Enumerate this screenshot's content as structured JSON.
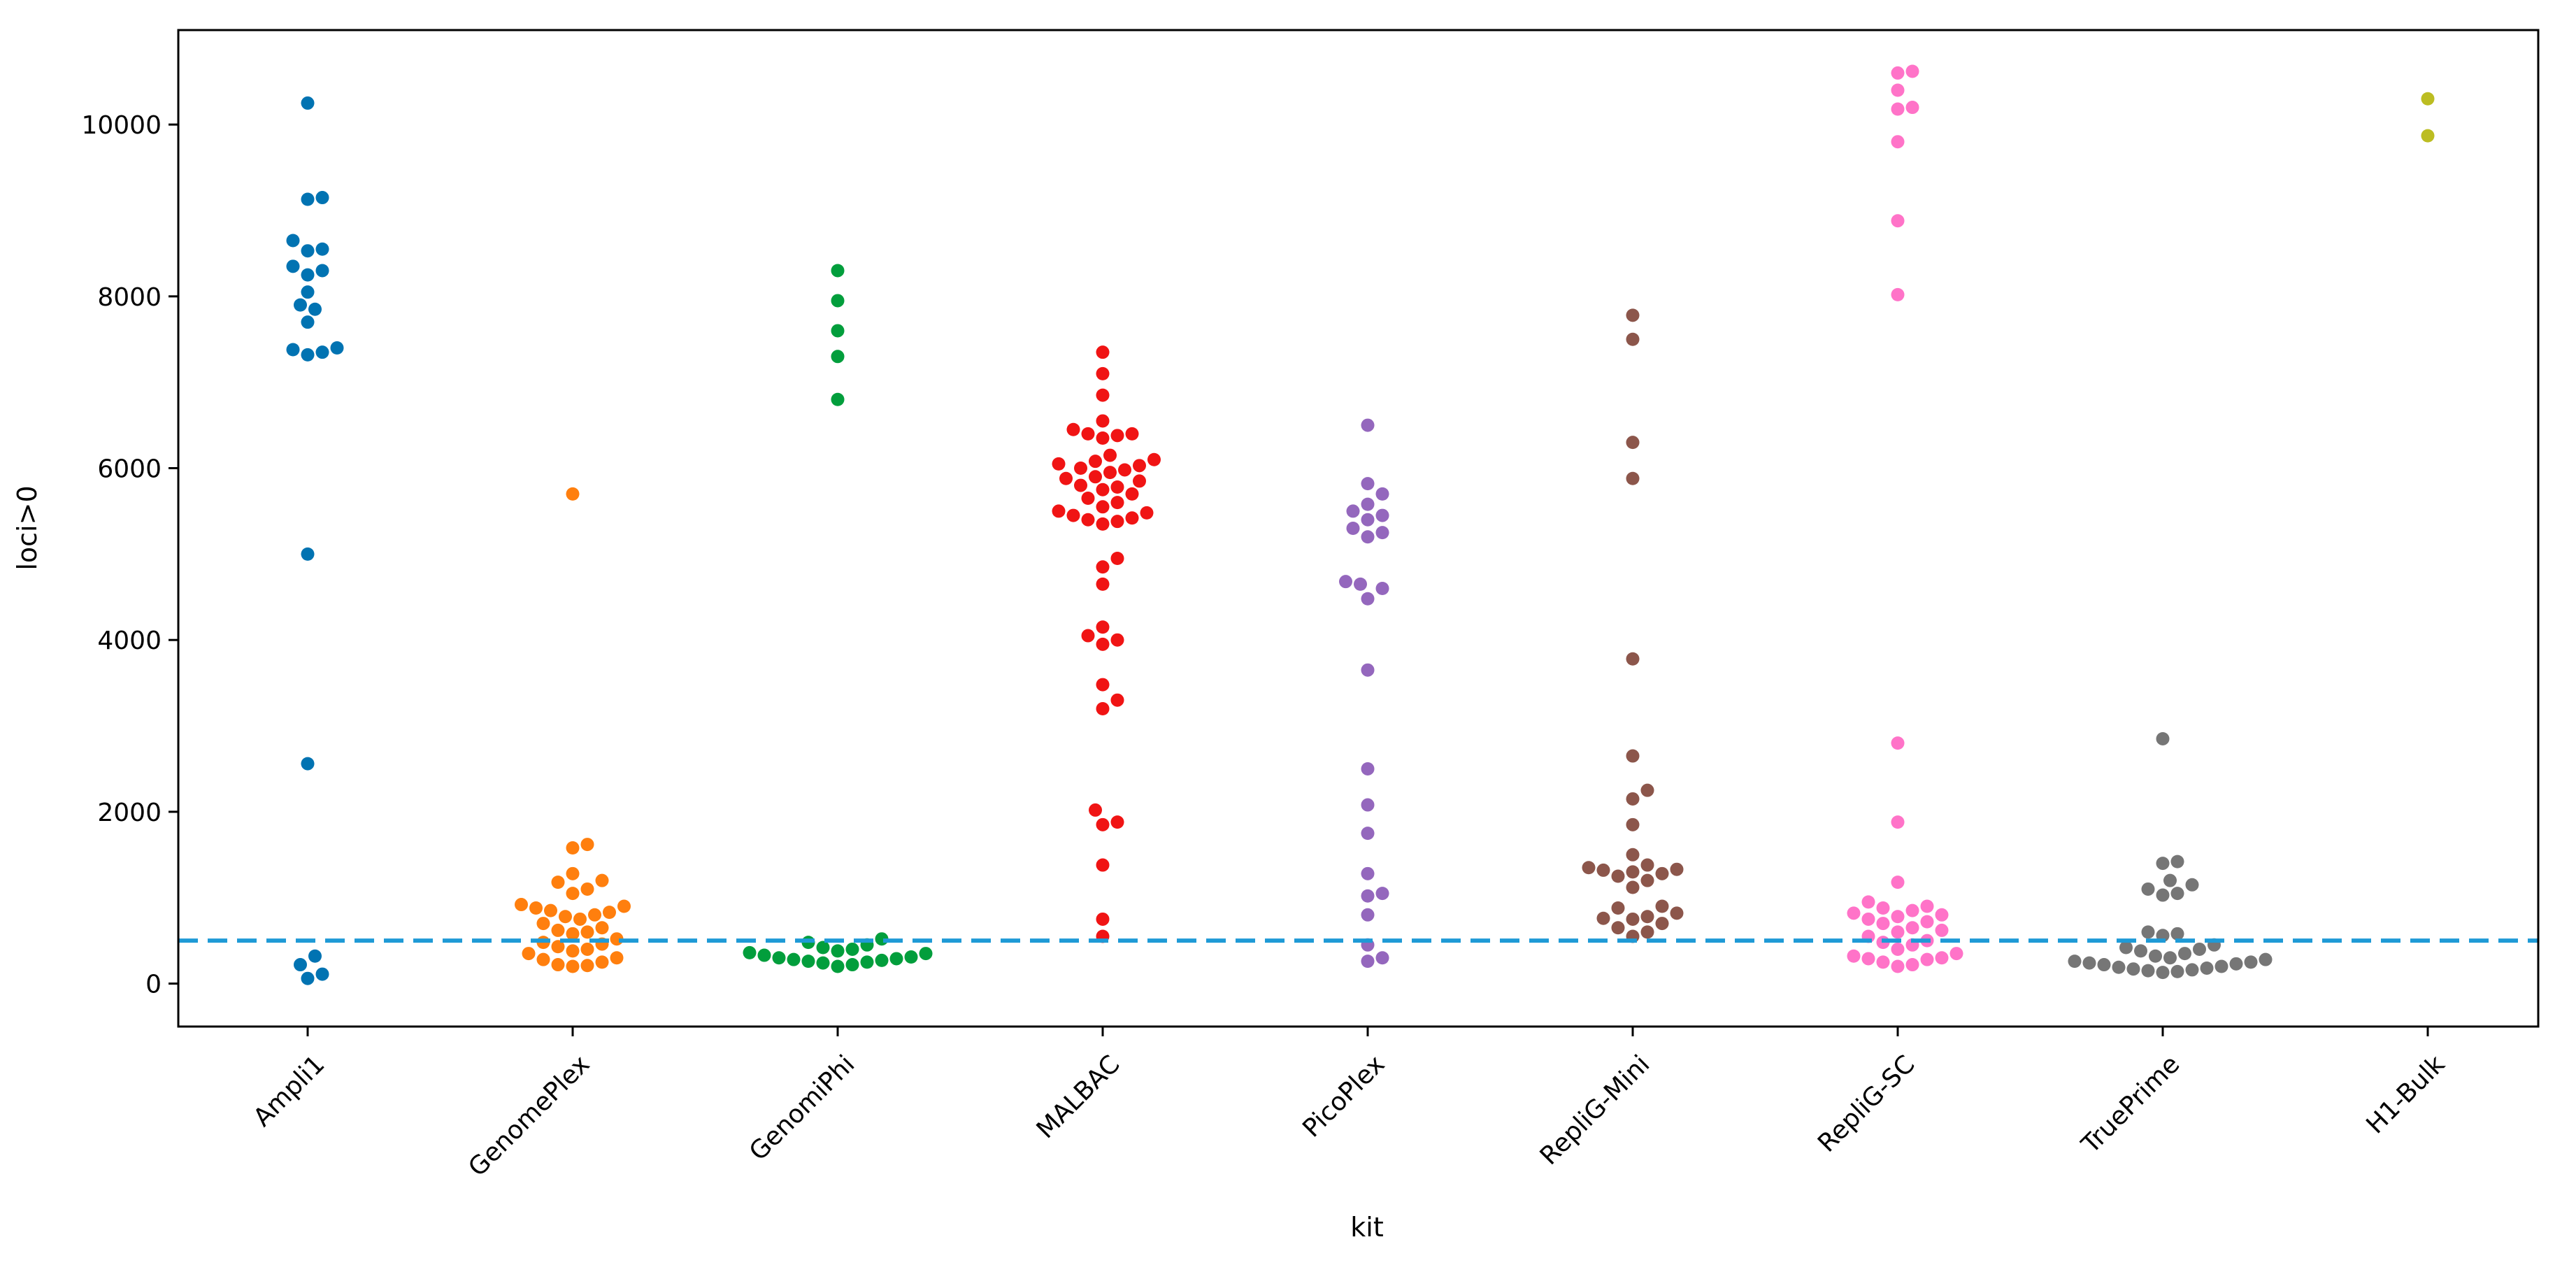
{
  "chart_data": {
    "type": "scatter",
    "subtype": "swarm",
    "title": "",
    "xlabel": "kit",
    "ylabel": "loci>0",
    "ylim": [
      -500,
      11100
    ],
    "yticks": [
      0,
      2000,
      4000,
      6000,
      8000,
      10000
    ],
    "categories": [
      "Ampli1",
      "GenomePlex",
      "GenomiPhi",
      "MALBAC",
      "PicoPlex",
      "RepliG-Mini",
      "RepliG-SC",
      "TruePrime",
      "H1-Bulk"
    ],
    "threshold": {
      "value": 500,
      "style": "dashed",
      "color": "#1f9ad6"
    },
    "grid": false,
    "legend": "none",
    "series": [
      {
        "name": "Ampli1",
        "color": "#0173b2",
        "values": [
          10250,
          9150,
          9130,
          8650,
          8550,
          8530,
          8350,
          8300,
          8250,
          8050,
          7900,
          7850,
          7700,
          7400,
          7380,
          7350,
          7320,
          5000,
          2560,
          320,
          220,
          110,
          60
        ]
      },
      {
        "name": "GenomePlex",
        "color": "#ff7f0e",
        "values": [
          5700,
          1620,
          1580,
          1280,
          1200,
          1180,
          1100,
          1050,
          920,
          900,
          880,
          850,
          830,
          800,
          780,
          750,
          700,
          650,
          620,
          600,
          580,
          520,
          480,
          460,
          430,
          400,
          380,
          350,
          300,
          280,
          250,
          220,
          210,
          200
        ]
      },
      {
        "name": "GenomiPhi",
        "color": "#029e3c",
        "values": [
          8300,
          7950,
          7600,
          7300,
          6800,
          520,
          480,
          450,
          420,
          400,
          380,
          360,
          350,
          330,
          310,
          300,
          290,
          280,
          270,
          260,
          250,
          240,
          220,
          200
        ]
      },
      {
        "name": "MALBAC",
        "color": "#f01414",
        "values": [
          7350,
          7100,
          6850,
          6550,
          6450,
          6400,
          6400,
          6380,
          6350,
          6150,
          6100,
          6080,
          6050,
          6030,
          6000,
          5980,
          5950,
          5900,
          5880,
          5850,
          5800,
          5780,
          5750,
          5700,
          5650,
          5600,
          5550,
          5500,
          5480,
          5450,
          5420,
          5400,
          5380,
          5350,
          4950,
          4850,
          4650,
          4150,
          4050,
          4000,
          3950,
          3480,
          3300,
          3200,
          2020,
          1880,
          1850,
          1380,
          750,
          550
        ]
      },
      {
        "name": "PicoPlex",
        "color": "#9467bd",
        "values": [
          6500,
          5820,
          5700,
          5580,
          5500,
          5450,
          5400,
          5300,
          5250,
          5200,
          4680,
          4650,
          4600,
          4480,
          3650,
          2500,
          2080,
          1750,
          1280,
          1050,
          1020,
          800,
          450,
          300,
          260
        ]
      },
      {
        "name": "RepliG-Mini",
        "color": "#8c564b",
        "values": [
          7780,
          7500,
          6300,
          5880,
          3780,
          2650,
          2250,
          2150,
          1850,
          1500,
          1380,
          1350,
          1330,
          1320,
          1300,
          1280,
          1250,
          1200,
          1120,
          900,
          880,
          820,
          780,
          760,
          750,
          700,
          650,
          600,
          550
        ]
      },
      {
        "name": "RepliG-SC",
        "color": "#ff73c8",
        "values": [
          10620,
          10600,
          10400,
          10200,
          10180,
          9800,
          8880,
          8020,
          2800,
          1880,
          1180,
          950,
          900,
          880,
          850,
          820,
          800,
          780,
          750,
          720,
          700,
          650,
          620,
          600,
          550,
          500,
          480,
          450,
          400,
          350,
          320,
          300,
          290,
          280,
          250,
          220,
          200
        ]
      },
      {
        "name": "TruePrime",
        "color": "#767676",
        "values": [
          2850,
          1420,
          1400,
          1200,
          1150,
          1100,
          1050,
          1030,
          600,
          580,
          560,
          450,
          420,
          400,
          380,
          350,
          320,
          300,
          280,
          260,
          250,
          240,
          230,
          220,
          200,
          190,
          180,
          170,
          160,
          150,
          140,
          130
        ]
      },
      {
        "name": "H1-Bulk",
        "color": "#bcbd22",
        "values": [
          10300,
          9870
        ]
      }
    ]
  }
}
